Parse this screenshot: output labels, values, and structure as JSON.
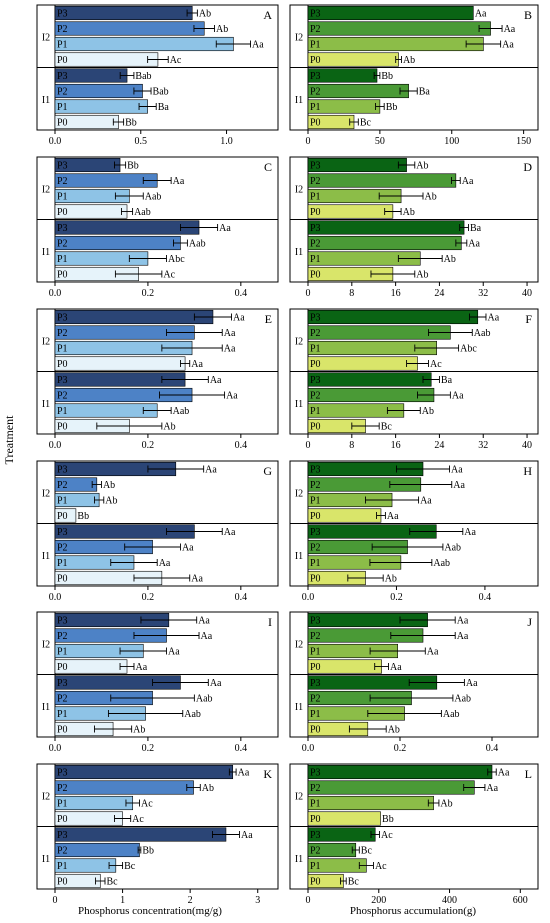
{
  "figure": {
    "ylabel": "Treatment",
    "xlabel_left": "Phosphorus concentration(mg/g)",
    "xlabel_right": "Phosphorus accumulation(g)"
  },
  "colors": {
    "blue": [
      "#e6f3fa",
      "#8ec3e6",
      "#4d82c6",
      "#2b4576"
    ],
    "green": [
      "#d9e56a",
      "#8cbd48",
      "#4a9a36",
      "#0a6414"
    ]
  },
  "chart_data": [
    {
      "panel": "A",
      "type": "bar",
      "orientation": "horizontal",
      "palette": "blue",
      "xlim": [
        0,
        1.3
      ],
      "xticks": [
        0,
        0.5,
        1.0
      ],
      "xtick_labels": [
        "0.0",
        "0.5",
        "1.0"
      ],
      "groups": [
        {
          "name": "I2",
          "bars": [
            {
              "label": "P3",
              "value": 0.8,
              "err": 0.03,
              "sig": "Ab"
            },
            {
              "label": "P2",
              "value": 0.87,
              "err": 0.06,
              "sig": "Ab"
            },
            {
              "label": "P1",
              "value": 1.04,
              "err": 0.1,
              "sig": "Aa"
            },
            {
              "label": "P0",
              "value": 0.6,
              "err": 0.06,
              "sig": "Ac"
            }
          ]
        },
        {
          "name": "I1",
          "bars": [
            {
              "label": "P3",
              "value": 0.42,
              "err": 0.04,
              "sig": "Bab"
            },
            {
              "label": "P2",
              "value": 0.51,
              "err": 0.05,
              "sig": "Bab"
            },
            {
              "label": "P1",
              "value": 0.54,
              "err": 0.05,
              "sig": "Ba"
            },
            {
              "label": "P0",
              "value": 0.37,
              "err": 0.03,
              "sig": "Bb"
            }
          ]
        }
      ]
    },
    {
      "panel": "B",
      "type": "bar",
      "orientation": "horizontal",
      "palette": "green",
      "xlim": [
        0,
        160
      ],
      "xticks": [
        0,
        50,
        100,
        150
      ],
      "xtick_labels": [
        "0",
        "50",
        "100",
        "150"
      ],
      "groups": [
        {
          "name": "I2",
          "bars": [
            {
              "label": "P3",
              "value": 115,
              "err": 0,
              "sig": "Aa"
            },
            {
              "label": "P2",
              "value": 127,
              "err": 8,
              "sig": "Aa"
            },
            {
              "label": "P1",
              "value": 122,
              "err": 12,
              "sig": "Aa"
            },
            {
              "label": "P0",
              "value": 63,
              "err": 2,
              "sig": "Ab"
            }
          ]
        },
        {
          "name": "I1",
          "bars": [
            {
              "label": "P3",
              "value": 48,
              "err": 2,
              "sig": "Bb"
            },
            {
              "label": "P2",
              "value": 70,
              "err": 6,
              "sig": "Ba"
            },
            {
              "label": "P1",
              "value": 50,
              "err": 3,
              "sig": "Bb"
            },
            {
              "label": "P0",
              "value": 32,
              "err": 3,
              "sig": "Bc"
            }
          ]
        }
      ]
    },
    {
      "panel": "C",
      "type": "bar",
      "orientation": "horizontal",
      "palette": "blue",
      "xlim": [
        0,
        0.48
      ],
      "xticks": [
        0,
        0.2,
        0.4
      ],
      "xtick_labels": [
        "0.0",
        "0.2",
        "0.4"
      ],
      "groups": [
        {
          "name": "I2",
          "bars": [
            {
              "label": "P3",
              "value": 0.14,
              "err": 0.012,
              "sig": "Bb"
            },
            {
              "label": "P2",
              "value": 0.22,
              "err": 0.03,
              "sig": "Aa"
            },
            {
              "label": "P1",
              "value": 0.16,
              "err": 0.03,
              "sig": "Aab"
            },
            {
              "label": "P0",
              "value": 0.155,
              "err": 0.012,
              "sig": "Aab"
            }
          ]
        },
        {
          "name": "I1",
          "bars": [
            {
              "label": "P3",
              "value": 0.31,
              "err": 0.04,
              "sig": "Aa"
            },
            {
              "label": "P2",
              "value": 0.27,
              "err": 0.015,
              "sig": "Aab"
            },
            {
              "label": "P1",
              "value": 0.2,
              "err": 0.04,
              "sig": "Abc"
            },
            {
              "label": "P0",
              "value": 0.18,
              "err": 0.05,
              "sig": "Ac"
            }
          ]
        }
      ]
    },
    {
      "panel": "D",
      "type": "bar",
      "orientation": "horizontal",
      "palette": "green",
      "xlim": [
        0,
        42
      ],
      "xticks": [
        0,
        8,
        16,
        24,
        32,
        40
      ],
      "xtick_labels": [
        "0",
        "8",
        "16",
        "24",
        "32",
        "40"
      ],
      "groups": [
        {
          "name": "I2",
          "bars": [
            {
              "label": "P3",
              "value": 18,
              "err": 1.5,
              "sig": "Ab"
            },
            {
              "label": "P2",
              "value": 27,
              "err": 0.8,
              "sig": "Aa"
            },
            {
              "label": "P1",
              "value": 17,
              "err": 4,
              "sig": "Ab"
            },
            {
              "label": "P0",
              "value": 15.5,
              "err": 1.5,
              "sig": "Ab"
            }
          ]
        },
        {
          "name": "I1",
          "bars": [
            {
              "label": "P3",
              "value": 28.5,
              "err": 0.8,
              "sig": "Ba"
            },
            {
              "label": "P2",
              "value": 28,
              "err": 1,
              "sig": "Aa"
            },
            {
              "label": "P1",
              "value": 20.5,
              "err": 4,
              "sig": "Ab"
            },
            {
              "label": "P0",
              "value": 15.5,
              "err": 4,
              "sig": "Ab"
            }
          ]
        }
      ]
    },
    {
      "panel": "E",
      "type": "bar",
      "orientation": "horizontal",
      "palette": "blue",
      "xlim": [
        0,
        0.48
      ],
      "xticks": [
        0,
        0.2,
        0.4
      ],
      "xtick_labels": [
        "0.0",
        "0.2",
        "0.4"
      ],
      "groups": [
        {
          "name": "I2",
          "bars": [
            {
              "label": "P3",
              "value": 0.34,
              "err": 0.04,
              "sig": "Aa"
            },
            {
              "label": "P2",
              "value": 0.3,
              "err": 0.06,
              "sig": "Aa"
            },
            {
              "label": "P1",
              "value": 0.295,
              "err": 0.065,
              "sig": "Aa"
            },
            {
              "label": "P0",
              "value": 0.28,
              "err": 0.01,
              "sig": "Aa"
            }
          ]
        },
        {
          "name": "I1",
          "bars": [
            {
              "label": "P3",
              "value": 0.28,
              "err": 0.05,
              "sig": "Aa"
            },
            {
              "label": "P2",
              "value": 0.295,
              "err": 0.07,
              "sig": "Aa"
            },
            {
              "label": "P1",
              "value": 0.22,
              "err": 0.03,
              "sig": "Aab"
            },
            {
              "label": "P0",
              "value": 0.16,
              "err": 0.07,
              "sig": "Ab"
            }
          ]
        }
      ]
    },
    {
      "panel": "F",
      "type": "bar",
      "orientation": "horizontal",
      "palette": "green",
      "xlim": [
        0,
        42
      ],
      "xticks": [
        0,
        8,
        16,
        24,
        32,
        40
      ],
      "xtick_labels": [
        "0",
        "8",
        "16",
        "24",
        "32",
        "40"
      ],
      "groups": [
        {
          "name": "I2",
          "bars": [
            {
              "label": "P3",
              "value": 31,
              "err": 1.5,
              "sig": "Aa"
            },
            {
              "label": "P2",
              "value": 26,
              "err": 4,
              "sig": "Aab"
            },
            {
              "label": "P1",
              "value": 23.5,
              "err": 4,
              "sig": "Abc"
            },
            {
              "label": "P0",
              "value": 20,
              "err": 2,
              "sig": "Ac"
            }
          ]
        },
        {
          "name": "I1",
          "bars": [
            {
              "label": "P3",
              "value": 22.5,
              "err": 1.5,
              "sig": "Ba"
            },
            {
              "label": "P2",
              "value": 23,
              "err": 3,
              "sig": "Aa"
            },
            {
              "label": "P1",
              "value": 17.5,
              "err": 3,
              "sig": "Ab"
            },
            {
              "label": "P0",
              "value": 10.5,
              "err": 2.5,
              "sig": "Bc"
            }
          ]
        }
      ]
    },
    {
      "panel": "G",
      "type": "bar",
      "orientation": "horizontal",
      "palette": "blue",
      "xlim": [
        0,
        0.48
      ],
      "xticks": [
        0,
        0.2,
        0.4
      ],
      "xtick_labels": [
        "0.0",
        "0.2",
        "0.4"
      ],
      "groups": [
        {
          "name": "I2",
          "bars": [
            {
              "label": "P3",
              "value": 0.26,
              "err": 0.06,
              "sig": "Aa"
            },
            {
              "label": "P2",
              "value": 0.09,
              "err": 0.01,
              "sig": "Ab"
            },
            {
              "label": "P1",
              "value": 0.095,
              "err": 0.01,
              "sig": "Ab"
            },
            {
              "label": "P0",
              "value": 0.045,
              "err": 0,
              "sig": "Bb"
            }
          ]
        },
        {
          "name": "I1",
          "bars": [
            {
              "label": "P3",
              "value": 0.3,
              "err": 0.06,
              "sig": "Aa"
            },
            {
              "label": "P2",
              "value": 0.21,
              "err": 0.06,
              "sig": "Aa"
            },
            {
              "label": "P1",
              "value": 0.17,
              "err": 0.05,
              "sig": "Aa"
            },
            {
              "label": "P0",
              "value": 0.23,
              "err": 0.06,
              "sig": "Aa"
            }
          ]
        }
      ]
    },
    {
      "panel": "H",
      "type": "bar",
      "orientation": "horizontal",
      "palette": "green",
      "xlim": [
        0,
        0.52
      ],
      "xticks": [
        0,
        0.2,
        0.4
      ],
      "xtick_labels": [
        "0.0",
        "0.2",
        "0.4"
      ],
      "groups": [
        {
          "name": "I2",
          "bars": [
            {
              "label": "P3",
              "value": 0.26,
              "err": 0.06,
              "sig": "Aa"
            },
            {
              "label": "P2",
              "value": 0.255,
              "err": 0.07,
              "sig": "Aa"
            },
            {
              "label": "P1",
              "value": 0.19,
              "err": 0.06,
              "sig": "Aa"
            },
            {
              "label": "P0",
              "value": 0.165,
              "err": 0.01,
              "sig": "Aa"
            }
          ]
        },
        {
          "name": "I1",
          "bars": [
            {
              "label": "P3",
              "value": 0.29,
              "err": 0.06,
              "sig": "Aa"
            },
            {
              "label": "P2",
              "value": 0.225,
              "err": 0.08,
              "sig": "Aab"
            },
            {
              "label": "P1",
              "value": 0.21,
              "err": 0.07,
              "sig": "Aab"
            },
            {
              "label": "P0",
              "value": 0.13,
              "err": 0.04,
              "sig": "Ab"
            }
          ]
        }
      ]
    },
    {
      "panel": "I",
      "type": "bar",
      "orientation": "horizontal",
      "palette": "blue",
      "xlim": [
        0,
        0.48
      ],
      "xticks": [
        0,
        0.2,
        0.4
      ],
      "xtick_labels": [
        "0.0",
        "0.2",
        "0.4"
      ],
      "groups": [
        {
          "name": "I2",
          "bars": [
            {
              "label": "P3",
              "value": 0.245,
              "err": 0.06,
              "sig": "Aa"
            },
            {
              "label": "P2",
              "value": 0.24,
              "err": 0.07,
              "sig": "Aa"
            },
            {
              "label": "P1",
              "value": 0.19,
              "err": 0.05,
              "sig": "Aa"
            },
            {
              "label": "P0",
              "value": 0.155,
              "err": 0.015,
              "sig": "Aa"
            }
          ]
        },
        {
          "name": "I1",
          "bars": [
            {
              "label": "P3",
              "value": 0.27,
              "err": 0.06,
              "sig": "Aa"
            },
            {
              "label": "P2",
              "value": 0.21,
              "err": 0.09,
              "sig": "Aab"
            },
            {
              "label": "P1",
              "value": 0.195,
              "err": 0.08,
              "sig": "Aab"
            },
            {
              "label": "P0",
              "value": 0.125,
              "err": 0.04,
              "sig": "Ab"
            }
          ]
        }
      ]
    },
    {
      "panel": "J",
      "type": "bar",
      "orientation": "horizontal",
      "palette": "green",
      "xlim": [
        0,
        0.5
      ],
      "xticks": [
        0,
        0.2,
        0.4
      ],
      "xtick_labels": [
        "0.0",
        "0.2",
        "0.4"
      ],
      "groups": [
        {
          "name": "I2",
          "bars": [
            {
              "label": "P3",
              "value": 0.26,
              "err": 0.06,
              "sig": "Aa"
            },
            {
              "label": "P2",
              "value": 0.25,
              "err": 0.07,
              "sig": "Aa"
            },
            {
              "label": "P1",
              "value": 0.195,
              "err": 0.06,
              "sig": "Aa"
            },
            {
              "label": "P0",
              "value": 0.16,
              "err": 0.015,
              "sig": "Aa"
            }
          ]
        },
        {
          "name": "I1",
          "bars": [
            {
              "label": "P3",
              "value": 0.28,
              "err": 0.06,
              "sig": "Aa"
            },
            {
              "label": "P2",
              "value": 0.225,
              "err": 0.09,
              "sig": "Aab"
            },
            {
              "label": "P1",
              "value": 0.21,
              "err": 0.08,
              "sig": "Aab"
            },
            {
              "label": "P0",
              "value": 0.13,
              "err": 0.04,
              "sig": "Ab"
            }
          ]
        }
      ]
    },
    {
      "panel": "K",
      "type": "bar",
      "orientation": "horizontal",
      "palette": "blue",
      "xlim": [
        0,
        3.3
      ],
      "xticks": [
        0,
        1,
        2,
        3
      ],
      "xtick_labels": [
        "0",
        "1",
        "2",
        "3"
      ],
      "groups": [
        {
          "name": "I2",
          "bars": [
            {
              "label": "P3",
              "value": 2.63,
              "err": 0.05,
              "sig": "Aa"
            },
            {
              "label": "P2",
              "value": 2.05,
              "err": 0.1,
              "sig": "Ab"
            },
            {
              "label": "P1",
              "value": 1.15,
              "err": 0.1,
              "sig": "Ac"
            },
            {
              "label": "P0",
              "value": 1.0,
              "err": 0.12,
              "sig": "Ac"
            }
          ]
        },
        {
          "name": "I1",
          "bars": [
            {
              "label": "P3",
              "value": 2.53,
              "err": 0.2,
              "sig": "Aa"
            },
            {
              "label": "P2",
              "value": 1.25,
              "err": 0.02,
              "sig": "Bb"
            },
            {
              "label": "P1",
              "value": 0.9,
              "err": 0.1,
              "sig": "Bc"
            },
            {
              "label": "P0",
              "value": 0.67,
              "err": 0.07,
              "sig": "Bc"
            }
          ]
        }
      ]
    },
    {
      "panel": "L",
      "type": "bar",
      "orientation": "horizontal",
      "palette": "green",
      "xlim": [
        0,
        650
      ],
      "xticks": [
        0,
        200,
        400,
        600
      ],
      "xtick_labels": [
        "0",
        "200",
        "400",
        "600"
      ],
      "groups": [
        {
          "name": "I2",
          "bars": [
            {
              "label": "P3",
              "value": 520,
              "err": 12,
              "sig": "Aa"
            },
            {
              "label": "P2",
              "value": 470,
              "err": 30,
              "sig": "Aa"
            },
            {
              "label": "P1",
              "value": 355,
              "err": 15,
              "sig": "Ab"
            },
            {
              "label": "P0",
              "value": 205,
              "err": 0,
              "sig": "Bb"
            }
          ]
        },
        {
          "name": "I1",
          "bars": [
            {
              "label": "P3",
              "value": 190,
              "err": 12,
              "sig": "Ac"
            },
            {
              "label": "P2",
              "value": 135,
              "err": 10,
              "sig": "Bc"
            },
            {
              "label": "P1",
              "value": 165,
              "err": 20,
              "sig": "Ac"
            },
            {
              "label": "P0",
              "value": 100,
              "err": 8,
              "sig": "Bc"
            }
          ]
        }
      ]
    }
  ]
}
